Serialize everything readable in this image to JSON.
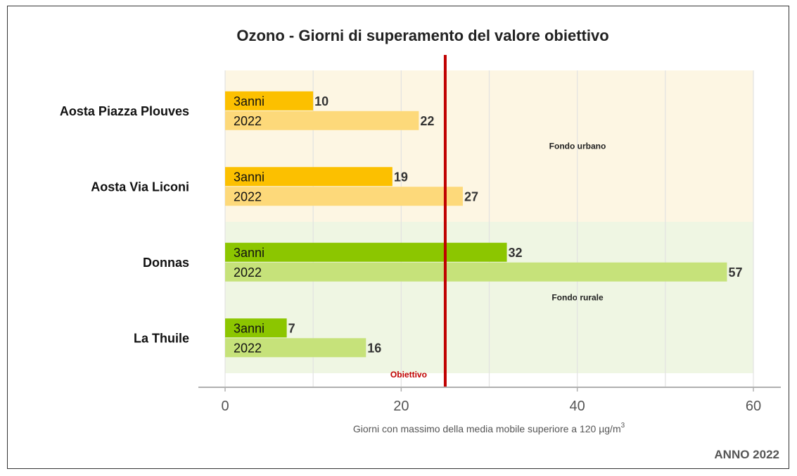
{
  "chart_data": {
    "type": "bar",
    "orientation": "horizontal",
    "title": "Ozono - Giorni di superamento del valore obiettivo",
    "xlabel_prefix": "Giorni con massimo della media mobile superiore a 120 µg/m",
    "xlabel_superscript": "3",
    "xlim": [
      0,
      60
    ],
    "xticks": [
      "0",
      "20",
      "40",
      "60"
    ],
    "grid": true,
    "objective": {
      "label": "Obiettivo",
      "value": 25,
      "color": "#c00000"
    },
    "year_tag": "ANNO 2022",
    "zones": [
      {
        "label": "Fondo urbano",
        "stations": [
          "Aosta Piazza Plouves",
          "Aosta Via Liconi"
        ],
        "background": "#fdf6e3"
      },
      {
        "label": "Fondo rurale",
        "stations": [
          "Donnas",
          "La Thuile"
        ],
        "background": "#eff6e3"
      }
    ],
    "categories": [
      "Aosta Piazza Plouves",
      "Aosta Via Liconi",
      "Donnas",
      "La Thuile"
    ],
    "series": [
      {
        "name": "3anni",
        "values": [
          10,
          19,
          32,
          7
        ]
      },
      {
        "name": "2022",
        "values": [
          22,
          27,
          57,
          16
        ]
      }
    ],
    "colors": {
      "urban_3anni": "#fcc000",
      "urban_2022": "#fdd97a",
      "rural_3anni": "#8cc600",
      "rural_2022": "#c6e27a"
    }
  }
}
